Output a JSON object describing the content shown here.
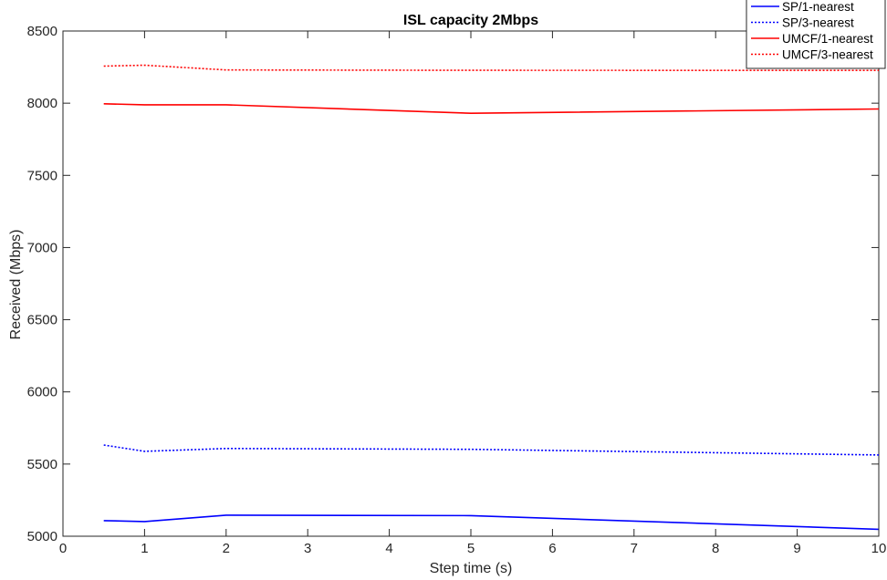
{
  "chart_data": {
    "type": "line",
    "title": "ISL capacity 2Mbps",
    "xlabel": "Step time (s)",
    "ylabel": "Received (Mbps)",
    "xlim": [
      0,
      10
    ],
    "ylim": [
      5000,
      8500
    ],
    "x_ticks": [
      0,
      1,
      2,
      3,
      4,
      5,
      6,
      7,
      8,
      9,
      10
    ],
    "y_ticks": [
      5000,
      5500,
      6000,
      6500,
      7000,
      7500,
      8000,
      8500
    ],
    "x_tick_labels": [
      "0",
      "1",
      "2",
      "3",
      "4",
      "5",
      "6",
      "7",
      "8",
      "9",
      "10"
    ],
    "y_tick_labels": [
      "5000",
      "5500",
      "6000",
      "6500",
      "7000",
      "7500",
      "8000",
      "8500"
    ],
    "grid": false,
    "legend_position": "top-right",
    "x": [
      0.5,
      1,
      2,
      5,
      10
    ],
    "series": [
      {
        "name": "SP/1-nearest",
        "color": "#0000ff",
        "line_style": "solid",
        "values": [
          5108,
          5102,
          5146,
          5143,
          5048
        ]
      },
      {
        "name": "SP/3-nearest",
        "color": "#0000ff",
        "line_style": "dotted",
        "values": [
          5632,
          5588,
          5608,
          5602,
          5563
        ]
      },
      {
        "name": "UMCF/1-nearest",
        "color": "#ff0000",
        "line_style": "solid",
        "values": [
          7996,
          7989,
          7989,
          7930,
          7960
        ]
      },
      {
        "name": "UMCF/3-nearest",
        "color": "#ff0000",
        "line_style": "dotted",
        "values": [
          8257,
          8263,
          8230,
          8228,
          8227
        ]
      }
    ]
  }
}
